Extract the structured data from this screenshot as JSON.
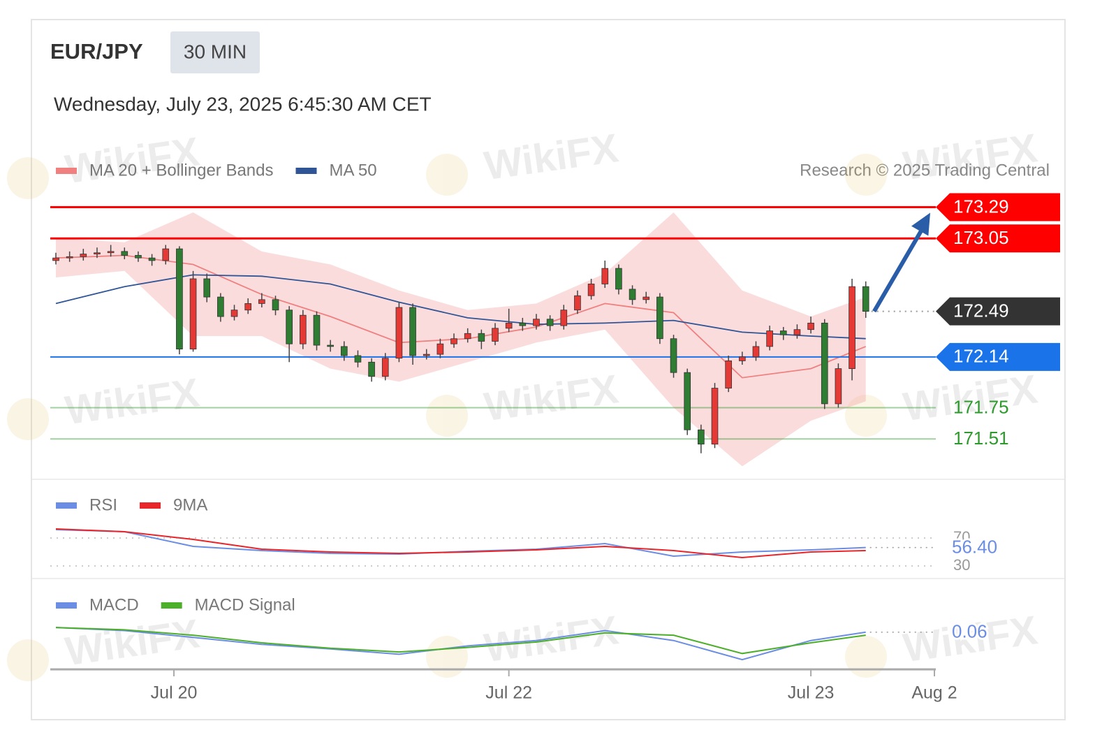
{
  "header": {
    "symbol": "EUR/JPY",
    "interval": "30 MIN",
    "timestamp": "Wednesday, July 23, 2025 6:45:30 AM CET"
  },
  "credit": "Research © 2025 Trading Central",
  "watermark": "WikiFX",
  "chart_data": [
    {
      "type": "candlestick",
      "xlim": [
        0,
        64
      ],
      "ylim": [
        171.2,
        173.4
      ],
      "up_color": "#e53935",
      "down_color": "#2e7d32",
      "x": [
        0,
        1,
        2,
        3,
        4,
        5,
        6,
        7,
        8,
        9,
        10,
        11,
        12,
        13,
        14,
        15,
        16,
        17,
        18,
        19,
        20,
        21,
        22,
        23,
        24,
        25,
        26,
        27,
        28,
        29,
        30,
        31,
        32,
        33,
        34,
        35,
        36,
        37,
        38,
        39,
        40,
        41,
        42,
        43,
        44,
        45,
        46,
        47,
        48,
        49,
        50,
        51,
        52,
        53,
        54,
        55,
        56,
        57,
        58,
        59
      ],
      "open": [
        172.88,
        172.9,
        172.91,
        172.93,
        172.94,
        172.95,
        172.92,
        172.9,
        172.88,
        172.97,
        172.2,
        172.74,
        172.6,
        172.45,
        172.5,
        172.55,
        172.58,
        172.5,
        172.24,
        172.46,
        172.23,
        172.22,
        172.15,
        172.1,
        171.99,
        172.13,
        172.52,
        172.15,
        172.16,
        172.24,
        172.28,
        172.32,
        172.26,
        172.36,
        172.4,
        172.38,
        172.43,
        172.38,
        172.5,
        172.61,
        172.7,
        172.82,
        172.66,
        172.58,
        172.6,
        172.28,
        172.02,
        171.58,
        171.47,
        171.9,
        172.11,
        172.14,
        172.22,
        172.34,
        172.31,
        172.35,
        172.4,
        171.78,
        172.05,
        172.68
      ],
      "high": [
        172.94,
        172.95,
        172.97,
        172.98,
        173.0,
        172.98,
        172.95,
        172.93,
        173.0,
        172.99,
        172.8,
        172.78,
        172.63,
        172.54,
        172.59,
        172.63,
        172.61,
        172.53,
        172.5,
        172.49,
        172.27,
        172.26,
        172.19,
        172.13,
        172.17,
        172.56,
        172.55,
        172.2,
        172.28,
        172.32,
        172.36,
        172.35,
        172.4,
        172.51,
        172.44,
        172.47,
        172.46,
        172.54,
        172.65,
        172.74,
        172.88,
        172.85,
        172.69,
        172.64,
        172.63,
        172.31,
        172.05,
        171.62,
        171.94,
        172.15,
        172.18,
        172.26,
        172.38,
        172.37,
        172.39,
        172.45,
        172.43,
        172.09,
        172.74,
        172.72
      ],
      "low": [
        172.85,
        172.87,
        172.88,
        172.9,
        172.91,
        172.89,
        172.87,
        172.84,
        172.85,
        172.16,
        172.18,
        172.56,
        172.41,
        172.42,
        172.47,
        172.52,
        172.46,
        172.1,
        172.2,
        172.19,
        172.18,
        172.11,
        172.06,
        171.95,
        171.96,
        172.1,
        172.08,
        172.12,
        172.13,
        172.21,
        172.25,
        172.2,
        172.23,
        172.33,
        172.34,
        172.35,
        172.34,
        172.35,
        172.47,
        172.58,
        172.67,
        172.62,
        172.54,
        172.55,
        172.24,
        171.98,
        171.54,
        171.4,
        171.44,
        171.87,
        172.08,
        172.11,
        172.19,
        172.27,
        172.28,
        172.32,
        171.74,
        171.75,
        171.96,
        172.44
      ],
      "close": [
        172.9,
        172.91,
        172.93,
        172.94,
        172.95,
        172.92,
        172.9,
        172.88,
        172.97,
        172.2,
        172.74,
        172.6,
        172.45,
        172.5,
        172.55,
        172.58,
        172.5,
        172.24,
        172.46,
        172.23,
        172.22,
        172.15,
        172.1,
        171.99,
        172.13,
        172.52,
        172.15,
        172.16,
        172.24,
        172.28,
        172.32,
        172.26,
        172.36,
        172.4,
        172.38,
        172.43,
        172.38,
        172.5,
        172.61,
        172.7,
        172.82,
        172.66,
        172.58,
        172.6,
        172.28,
        172.02,
        171.58,
        171.47,
        171.9,
        172.11,
        172.14,
        172.22,
        172.34,
        172.31,
        172.35,
        172.4,
        171.78,
        172.05,
        172.68,
        172.49
      ],
      "overlays": [
        {
          "name": "MA 20 + Bollinger Bands",
          "color": "#f08080",
          "x": [
            0,
            5,
            10,
            15,
            20,
            25,
            30,
            35,
            40,
            45,
            50,
            55,
            59
          ],
          "values": [
            172.9,
            172.92,
            172.85,
            172.62,
            172.45,
            172.25,
            172.28,
            172.37,
            172.55,
            172.48,
            171.98,
            172.05,
            172.22
          ],
          "upper": [
            173.05,
            173.02,
            173.25,
            172.95,
            172.85,
            172.65,
            172.5,
            172.55,
            172.78,
            173.25,
            172.65,
            172.45,
            172.6
          ],
          "lower": [
            172.75,
            172.8,
            172.3,
            172.3,
            172.05,
            171.95,
            172.1,
            172.25,
            172.35,
            171.75,
            171.3,
            171.65,
            171.8
          ]
        },
        {
          "name": "MA 50",
          "color": "#2f5597",
          "x": [
            0,
            5,
            10,
            15,
            20,
            25,
            30,
            35,
            40,
            45,
            50,
            55,
            59
          ],
          "values": [
            172.55,
            172.68,
            172.77,
            172.76,
            172.7,
            172.56,
            172.44,
            172.39,
            172.4,
            172.42,
            172.33,
            172.3,
            172.28
          ]
        }
      ],
      "levels": [
        {
          "value": 173.29,
          "color": "#ff0000",
          "style": "tag",
          "line": "solid"
        },
        {
          "value": 173.05,
          "color": "#ff0000",
          "style": "tag",
          "line": "solid"
        },
        {
          "value": 172.49,
          "color": "#333333",
          "style": "tag",
          "line": "dotted"
        },
        {
          "value": 172.14,
          "color": "#1a73e8",
          "style": "tag",
          "line": "solid"
        },
        {
          "value": 171.75,
          "color": "#2e9a2e",
          "style": "text",
          "line": "solid"
        },
        {
          "value": 171.51,
          "color": "#2e9a2e",
          "style": "text",
          "line": "solid"
        }
      ]
    },
    {
      "type": "line",
      "xlim": [
        0,
        64
      ],
      "ylim": [
        15,
        85
      ],
      "yticks": [
        30,
        70
      ],
      "x": [
        0,
        5,
        10,
        15,
        20,
        25,
        30,
        35,
        40,
        45,
        50,
        55,
        59
      ],
      "series": [
        {
          "name": "RSI",
          "color": "#6b8de3",
          "values": [
            82,
            79,
            58,
            52,
            48,
            47,
            51,
            54,
            62,
            44,
            50,
            53,
            56.4
          ]
        },
        {
          "name": "9MA",
          "color": "#e8262a",
          "values": [
            83,
            79,
            68,
            54,
            50,
            48,
            50,
            53,
            58,
            52,
            42,
            50,
            52
          ]
        }
      ],
      "last": {
        "value": 56.4,
        "label": "56.40"
      }
    },
    {
      "type": "line",
      "xlim": [
        0,
        64
      ],
      "ylim": [
        -0.4,
        0.24
      ],
      "xticks": [
        {
          "value": 8.6,
          "label": "Jul 20"
        },
        {
          "value": 33,
          "label": "Jul 22"
        },
        {
          "value": 55,
          "label": "Jul 23"
        },
        {
          "value": 64,
          "label": "Aug 2"
        }
      ],
      "x": [
        0,
        5,
        10,
        15,
        20,
        25,
        30,
        35,
        40,
        45,
        50,
        55,
        59
      ],
      "series": [
        {
          "name": "MACD",
          "color": "#6b8de3",
          "values": [
            0.12,
            0.08,
            -0.01,
            -0.1,
            -0.16,
            -0.23,
            -0.12,
            -0.05,
            0.08,
            -0.05,
            -0.3,
            -0.05,
            0.06
          ]
        },
        {
          "name": "MACD Signal",
          "color": "#4caf2a",
          "values": [
            0.12,
            0.09,
            0.02,
            -0.08,
            -0.15,
            -0.2,
            -0.14,
            -0.07,
            0.05,
            0.02,
            -0.22,
            -0.08,
            0.02
          ]
        }
      ],
      "last": {
        "value": 0.06
      }
    }
  ]
}
